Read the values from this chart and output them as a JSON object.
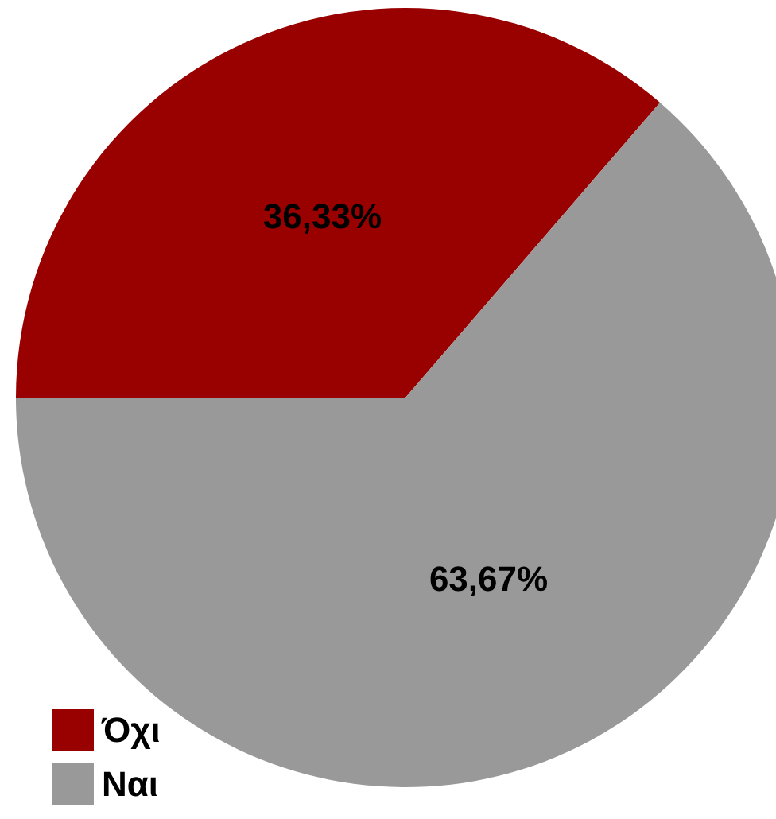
{
  "chart_data": {
    "type": "pie",
    "categories": [
      "Όχι",
      "Ναι"
    ],
    "values": [
      36.33,
      63.67
    ],
    "value_labels": [
      "36,33%",
      "63,67%"
    ],
    "colors": [
      "#990000",
      "#999999"
    ],
    "legend": "bottom left"
  }
}
